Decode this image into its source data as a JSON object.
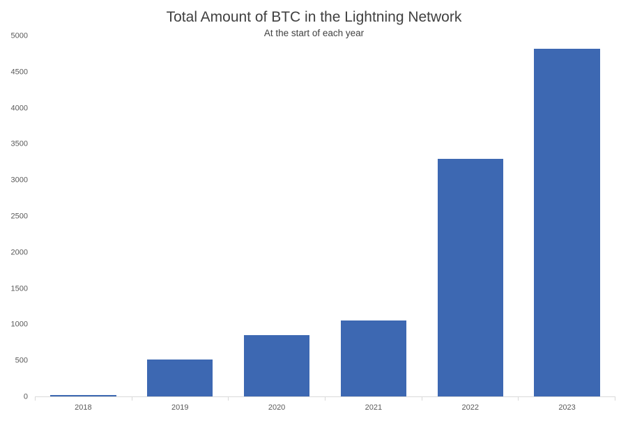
{
  "chart_data": {
    "type": "bar",
    "title": "Total Amount of BTC in the Lightning Network",
    "subtitle": "At the start of each year",
    "categories": [
      "2018",
      "2019",
      "2020",
      "2021",
      "2022",
      "2023"
    ],
    "values": [
      15,
      510,
      850,
      1050,
      3300,
      4830
    ],
    "ylabel": "",
    "xlabel": "",
    "ylim": [
      0,
      5000
    ],
    "ytick_step": 500,
    "ytick_labels": [
      "0",
      "500",
      "1000",
      "1500",
      "2000",
      "2500",
      "3000",
      "3500",
      "4000",
      "4500",
      "5000"
    ],
    "bar_color": "#3D68B2",
    "axis_line_color": "#d9d9d9",
    "grid": false,
    "legend": false
  }
}
